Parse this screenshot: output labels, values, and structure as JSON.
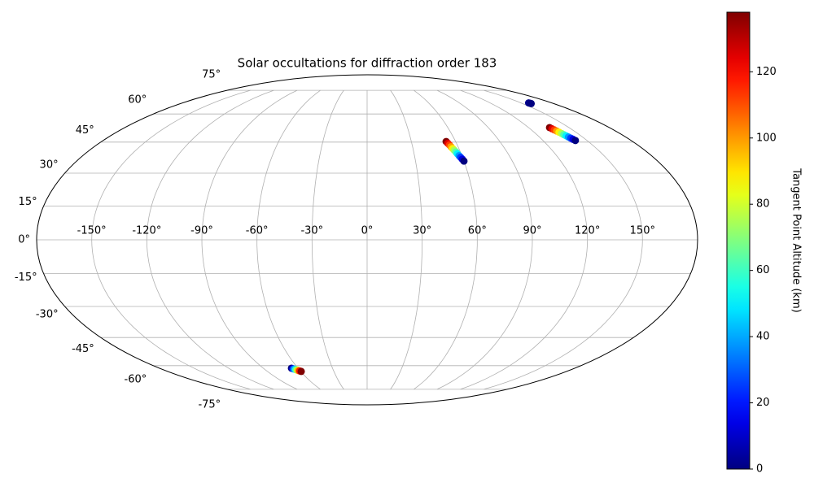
{
  "chart_data": {
    "type": "scatter",
    "projection": "mollweide",
    "title": "Solar occultations for diffraction order 183",
    "colormap": "jet",
    "colorbar_label": "Tangent Point Altitude (km)",
    "clim": [
      0,
      138
    ],
    "cticks": [
      0,
      20,
      40,
      60,
      80,
      100,
      120
    ],
    "grid": true,
    "xticks": [
      {
        "value": -150,
        "label": "-150°"
      },
      {
        "value": -120,
        "label": "-120°"
      },
      {
        "value": -90,
        "label": "-90°"
      },
      {
        "value": -60,
        "label": "-60°"
      },
      {
        "value": -30,
        "label": "-30°"
      },
      {
        "value": 0,
        "label": "0°"
      },
      {
        "value": 30,
        "label": "30°"
      },
      {
        "value": 60,
        "label": "60°"
      },
      {
        "value": 90,
        "label": "90°"
      },
      {
        "value": 120,
        "label": "120°"
      },
      {
        "value": 150,
        "label": "150°"
      }
    ],
    "yticks": [
      {
        "value": -75,
        "label": "-75°"
      },
      {
        "value": -60,
        "label": "-60°"
      },
      {
        "value": -45,
        "label": "-45°"
      },
      {
        "value": -30,
        "label": "-30°"
      },
      {
        "value": -15,
        "label": "-15°"
      },
      {
        "value": 0,
        "label": "0°"
      },
      {
        "value": 15,
        "label": "15°"
      },
      {
        "value": 30,
        "label": "30°"
      },
      {
        "value": 45,
        "label": "45°"
      },
      {
        "value": 60,
        "label": "60°"
      },
      {
        "value": 75,
        "label": "75°"
      }
    ],
    "x": [
      53.6,
      54.2,
      54.8,
      55.3,
      55.9,
      56.5,
      57.1,
      57.6,
      58.2,
      58.8,
      59.4,
      60.0,
      135.5,
      136.1,
      136.7,
      137.3,
      137.9,
      138.5,
      139.0,
      139.6,
      140.2,
      140.8,
      141.4,
      142.0,
      157.6,
      158.0,
      158.4,
      -65.6,
      -64.7,
      -63.9,
      -63.0,
      -62.1,
      -61.3,
      -60.4,
      -59.5
    ],
    "y": [
      45.3,
      44.4,
      43.6,
      42.7,
      41.8,
      41.0,
      40.1,
      39.2,
      38.3,
      37.5,
      36.6,
      35.7,
      52.5,
      51.9,
      51.3,
      50.7,
      50.1,
      49.4,
      48.8,
      48.2,
      47.6,
      47.0,
      46.4,
      45.8,
      66.6,
      66.4,
      66.2,
      -61.5,
      -61.8,
      -62.0,
      -62.3,
      -62.6,
      -62.9,
      -63.1,
      -63.4
    ],
    "values": [
      138,
      125,
      113,
      100,
      88,
      75,
      63,
      50,
      38,
      25,
      13,
      0,
      138,
      125,
      113,
      100,
      88,
      75,
      63,
      50,
      38,
      25,
      13,
      0,
      2,
      1,
      0,
      0,
      20,
      39,
      59,
      79,
      99,
      118,
      138
    ]
  }
}
